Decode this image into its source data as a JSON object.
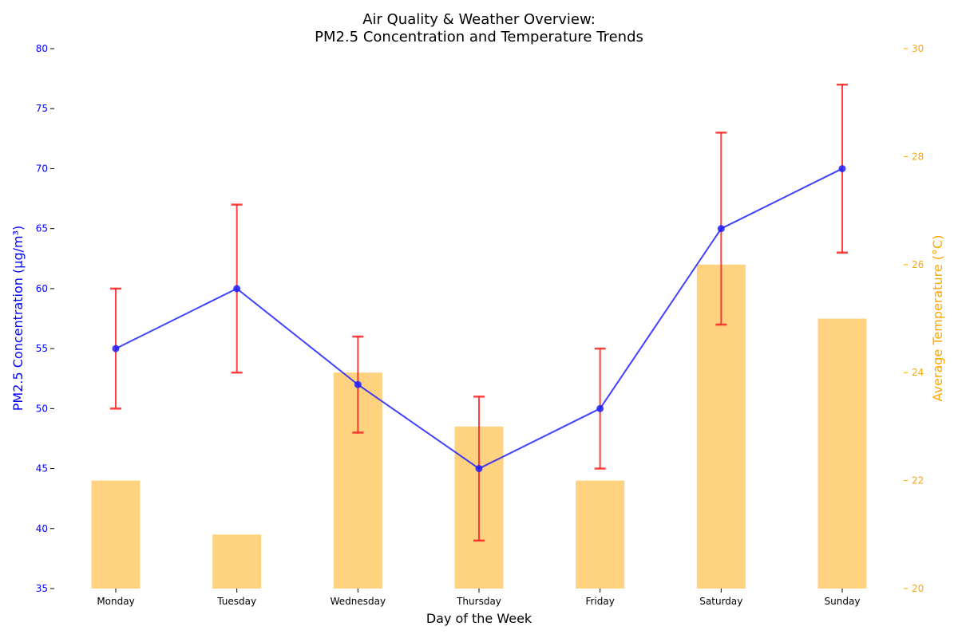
{
  "chart_data": {
    "type": "bar+line",
    "title_line1": "Air Quality & Weather Overview:",
    "title_line2": "PM2.5 Concentration and Temperature Trends",
    "xlabel": "Day of the Week",
    "categories": [
      "Monday",
      "Tuesday",
      "Wednesday",
      "Thursday",
      "Friday",
      "Saturday",
      "Sunday"
    ],
    "pm25": {
      "axis_label": "PM2.5 Concentration (µg/m³)",
      "values": [
        55,
        60,
        52,
        45,
        50,
        65,
        70
      ],
      "error_low": [
        50,
        53,
        48,
        39,
        45,
        57,
        63
      ],
      "error_high": [
        60,
        67,
        56,
        51,
        55,
        73,
        77
      ],
      "ylim": [
        35,
        80
      ],
      "ticks": [
        35,
        40,
        45,
        50,
        55,
        60,
        65,
        70,
        75,
        80
      ],
      "line_color": "#2020ff",
      "error_color": "#ff2020",
      "axis_color": "#0000ff"
    },
    "temperature": {
      "axis_label": "Average Temperature (°C)",
      "values": [
        22,
        21,
        24,
        23,
        22,
        26,
        25
      ],
      "ylim": [
        20,
        30
      ],
      "ticks": [
        20,
        22,
        24,
        26,
        28,
        30
      ],
      "bar_color": "#ffd27f",
      "axis_color": "#ffa500"
    },
    "grid": false
  }
}
